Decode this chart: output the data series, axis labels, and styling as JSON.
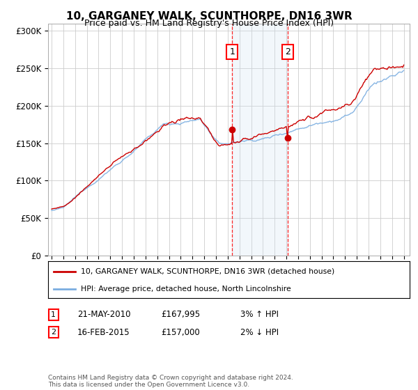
{
  "title": "10, GARGANEY WALK, SCUNTHORPE, DN16 3WR",
  "subtitle": "Price paid vs. HM Land Registry's House Price Index (HPI)",
  "ylabel_ticks": [
    "£0",
    "£50K",
    "£100K",
    "£150K",
    "£200K",
    "£250K",
    "£300K"
  ],
  "ylim": [
    0,
    310000
  ],
  "xlim_start": 1995,
  "xlim_end": 2025.5,
  "red_line_color": "#cc0000",
  "blue_line_color": "#7aade0",
  "transaction1_x": 2010.38,
  "transaction1_price": 167995,
  "transaction2_x": 2015.12,
  "transaction2_price": 157000,
  "legend_label_red": "10, GARGANEY WALK, SCUNTHORPE, DN16 3WR (detached house)",
  "legend_label_blue": "HPI: Average price, detached house, North Lincolnshire",
  "note1_label": "1",
  "note1_date": "21-MAY-2010",
  "note1_price": "£167,995",
  "note1_hpi": "3% ↑ HPI",
  "note2_label": "2",
  "note2_date": "16-FEB-2015",
  "note2_price": "£157,000",
  "note2_hpi": "2% ↓ HPI",
  "footer": "Contains HM Land Registry data © Crown copyright and database right 2024.\nThis data is licensed under the Open Government Licence v3.0.",
  "background_color": "#ffffff",
  "grid_color": "#cccccc",
  "shade_color": "#cfe0f0"
}
